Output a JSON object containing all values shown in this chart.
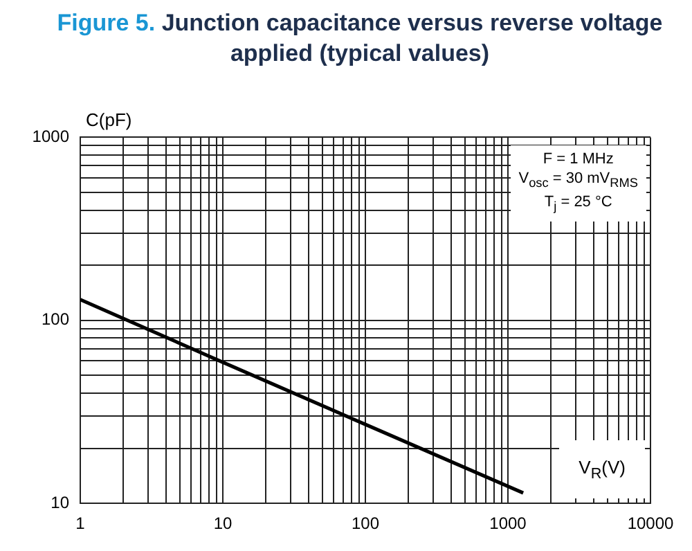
{
  "chart_data": {
    "type": "line",
    "title": "Figure 5. Junction capacitance versus reverse voltage applied (typical values)",
    "xlabel": "V$_{R}$(V)",
    "ylabel": "C(pF)",
    "annotations": [
      "F = 1 MHz",
      "V$_{osc}$ = 30 mV$_{RMS}$",
      "T$_{j}$ = 25 °C"
    ],
    "series": [
      {
        "color": "#000000",
        "x": [
          1,
          10,
          100,
          1280
        ],
        "values": [
          130,
          59,
          27,
          11.4
        ]
      }
    ],
    "log": "xy",
    "xlim": [
      1,
      10000
    ],
    "ylim": [
      10,
      1000
    ],
    "xticks": [
      1,
      {
        "value": 2,
        "label": null
      },
      {
        "value": 3,
        "label": null
      },
      {
        "value": 4,
        "label": null
      },
      {
        "value": 5,
        "label": null
      },
      {
        "value": 6,
        "label": null
      },
      {
        "value": 7,
        "label": null
      },
      {
        "value": 8,
        "label": null
      },
      {
        "value": 9,
        "label": null
      },
      10,
      {
        "value": 20,
        "label": null
      },
      {
        "value": 30,
        "label": null
      },
      {
        "value": 40,
        "label": null
      },
      {
        "value": 50,
        "label": null
      },
      {
        "value": 60,
        "label": null
      },
      {
        "value": 70,
        "label": null
      },
      {
        "value": 80,
        "label": null
      },
      {
        "value": 90,
        "label": null
      },
      100,
      {
        "value": 200,
        "label": null
      },
      {
        "value": 300,
        "label": null
      },
      {
        "value": 400,
        "label": null
      },
      {
        "value": 500,
        "label": null
      },
      {
        "value": 600,
        "label": null
      },
      {
        "value": 700,
        "label": null
      },
      {
        "value": 800,
        "label": null
      },
      {
        "value": 900,
        "label": null
      },
      1000,
      {
        "value": 2000,
        "label": null
      },
      {
        "value": 3000,
        "label": null
      },
      {
        "value": 4000,
        "label": null
      },
      {
        "value": 5000,
        "label": null
      },
      {
        "value": 6000,
        "label": null
      },
      {
        "value": 7000,
        "label": null
      },
      {
        "value": 8000,
        "label": null
      },
      {
        "value": 9000,
        "label": null
      },
      10000
    ],
    "yticks": [
      10,
      {
        "value": 20,
        "label": null
      },
      {
        "value": 30,
        "label": null
      },
      {
        "value": 40,
        "label": null
      },
      {
        "value": 50,
        "label": null
      },
      {
        "value": 60,
        "label": null
      },
      {
        "value": 70,
        "label": null
      },
      {
        "value": 80,
        "label": null
      },
      {
        "value": 90,
        "label": null
      },
      100,
      {
        "value": 200,
        "label": null
      },
      {
        "value": 300,
        "label": null
      },
      {
        "value": 400,
        "label": null
      },
      {
        "value": 500,
        "label": null
      },
      {
        "value": 600,
        "label": null
      },
      {
        "value": 700,
        "label": null
      },
      {
        "value": 800,
        "label": null
      },
      {
        "value": 900,
        "label": null
      },
      1000
    ],
    "grid": true,
    "legend": false,
    "marker": "none",
    "line_style": "solid"
  }
}
